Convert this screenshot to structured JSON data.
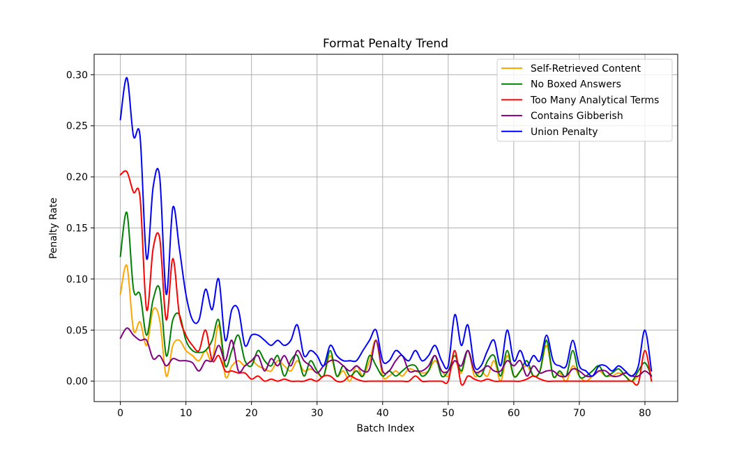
{
  "chart_data": {
    "type": "line",
    "title": "Format Penalty Trend",
    "xlabel": "Batch Index",
    "ylabel": "Penalty Rate",
    "xlim": [
      -4,
      85
    ],
    "ylim": [
      -0.02,
      0.32
    ],
    "xticks": [
      0,
      10,
      20,
      30,
      40,
      50,
      60,
      70,
      80
    ],
    "yticks": [
      0.0,
      0.05,
      0.1,
      0.15,
      0.2,
      0.25,
      0.3
    ],
    "ytick_labels": [
      "0.00",
      "0.05",
      "0.10",
      "0.15",
      "0.20",
      "0.25",
      "0.30"
    ],
    "grid": true,
    "legend_position": "top-right",
    "x": [
      0,
      1,
      2,
      3,
      4,
      5,
      6,
      7,
      8,
      9,
      10,
      11,
      12,
      13,
      14,
      15,
      16,
      17,
      18,
      19,
      20,
      21,
      22,
      23,
      24,
      25,
      26,
      27,
      28,
      29,
      30,
      31,
      32,
      33,
      34,
      35,
      36,
      37,
      38,
      39,
      40,
      41,
      42,
      43,
      44,
      45,
      46,
      47,
      48,
      49,
      50,
      51,
      52,
      53,
      54,
      55,
      56,
      57,
      58,
      59,
      60,
      61,
      62,
      63,
      64,
      65,
      66,
      67,
      68,
      69,
      70,
      71,
      72,
      73,
      74,
      75,
      76,
      77,
      78,
      79,
      80,
      81
    ],
    "series": [
      {
        "name": "Self-Retrieved Content",
        "color": "#ffa500",
        "values": [
          0.085,
          0.113,
          0.05,
          0.058,
          0.035,
          0.07,
          0.06,
          0.005,
          0.035,
          0.04,
          0.03,
          0.025,
          0.02,
          0.03,
          0.02,
          0.055,
          0.005,
          0.015,
          0.02,
          0.015,
          0.02,
          0.015,
          0.012,
          0.01,
          0.02,
          0.015,
          0.01,
          0.02,
          0.01,
          0.012,
          0.008,
          0.005,
          0.025,
          0.005,
          0.01,
          0.0,
          0.015,
          0.005,
          0.02,
          0.04,
          0.005,
          0.005,
          0.01,
          0.005,
          0.012,
          0.01,
          0.008,
          0.01,
          0.02,
          0.01,
          0.005,
          0.02,
          0.008,
          0.03,
          0.005,
          0.01,
          0.005,
          0.02,
          0.0,
          0.025,
          0.005,
          0.01,
          0.015,
          0.005,
          0.01,
          0.035,
          0.005,
          0.008,
          0.0,
          0.015,
          0.005,
          0.0,
          0.005,
          0.01,
          0.005,
          0.005,
          0.008,
          0.005,
          0.0,
          0.005,
          0.01,
          0.005
        ]
      },
      {
        "name": "No Boxed Answers",
        "color": "#008000",
        "values": [
          0.122,
          0.165,
          0.09,
          0.085,
          0.045,
          0.08,
          0.09,
          0.025,
          0.06,
          0.065,
          0.04,
          0.03,
          0.028,
          0.03,
          0.04,
          0.06,
          0.015,
          0.03,
          0.045,
          0.02,
          0.015,
          0.03,
          0.02,
          0.015,
          0.025,
          0.005,
          0.02,
          0.025,
          0.005,
          0.02,
          0.01,
          0.005,
          0.03,
          0.005,
          0.015,
          0.005,
          0.01,
          0.005,
          0.025,
          0.015,
          0.005,
          0.01,
          0.005,
          0.01,
          0.015,
          0.015,
          0.005,
          0.01,
          0.025,
          0.005,
          0.01,
          0.025,
          0.01,
          0.03,
          0.01,
          0.005,
          0.02,
          0.025,
          0.005,
          0.03,
          0.005,
          0.01,
          0.02,
          0.005,
          0.01,
          0.04,
          0.005,
          0.01,
          0.005,
          0.03,
          0.005,
          0.005,
          0.01,
          0.015,
          0.005,
          0.008,
          0.012,
          0.005,
          0.0,
          0.01,
          0.018,
          0.005
        ]
      },
      {
        "name": "Too Many Analytical Terms",
        "color": "#ff0000",
        "values": [
          0.202,
          0.205,
          0.185,
          0.18,
          0.07,
          0.13,
          0.14,
          0.06,
          0.12,
          0.065,
          0.045,
          0.035,
          0.03,
          0.05,
          0.02,
          0.025,
          0.01,
          0.01,
          0.008,
          0.008,
          0.002,
          0.005,
          0.0,
          0.002,
          0.0,
          0.002,
          0.0,
          0.0,
          0.0,
          0.002,
          0.0,
          0.005,
          0.005,
          0.0,
          0.0,
          0.005,
          0.002,
          0.0,
          0.0,
          0.0,
          0.0,
          0.0,
          0.0,
          0.0,
          0.0,
          0.005,
          0.0,
          0.0,
          0.0,
          0.0,
          0.0,
          0.03,
          -0.003,
          0.005,
          0.002,
          0.0,
          0.002,
          0.0,
          0.0,
          0.0,
          0.0,
          0.0,
          0.002,
          0.005,
          0.002,
          0.0,
          0.0,
          0.0,
          0.0,
          0.0,
          0.0,
          0.0,
          0.0,
          0.0,
          0.0,
          0.0,
          0.0,
          0.0,
          0.0,
          -0.002,
          0.03,
          0.0
        ]
      },
      {
        "name": "Contains Gibberish",
        "color": "#800080",
        "values": [
          0.042,
          0.052,
          0.045,
          0.04,
          0.04,
          0.022,
          0.025,
          0.015,
          0.022,
          0.02,
          0.02,
          0.018,
          0.01,
          0.02,
          0.02,
          0.035,
          0.02,
          0.04,
          0.01,
          0.015,
          0.02,
          0.025,
          0.01,
          0.022,
          0.015,
          0.025,
          0.015,
          0.03,
          0.02,
          0.015,
          0.008,
          0.015,
          0.02,
          0.02,
          0.015,
          0.01,
          0.015,
          0.01,
          0.012,
          0.04,
          0.01,
          0.01,
          0.02,
          0.025,
          0.01,
          0.01,
          0.01,
          0.015,
          0.025,
          0.01,
          0.01,
          0.02,
          0.015,
          0.03,
          0.01,
          0.01,
          0.015,
          0.01,
          0.01,
          0.02,
          0.015,
          0.02,
          0.005,
          0.015,
          0.008,
          0.01,
          0.01,
          0.005,
          0.005,
          0.012,
          0.01,
          0.005,
          0.005,
          0.01,
          0.01,
          0.005,
          0.005,
          0.008,
          0.005,
          0.005,
          0.01,
          0.005
        ]
      },
      {
        "name": "Union Penalty",
        "color": "#0000ff",
        "values": [
          0.256,
          0.297,
          0.24,
          0.24,
          0.12,
          0.19,
          0.2,
          0.085,
          0.17,
          0.13,
          0.085,
          0.06,
          0.06,
          0.09,
          0.07,
          0.1,
          0.04,
          0.07,
          0.07,
          0.035,
          0.045,
          0.045,
          0.04,
          0.035,
          0.04,
          0.035,
          0.04,
          0.055,
          0.025,
          0.03,
          0.025,
          0.015,
          0.035,
          0.025,
          0.02,
          0.02,
          0.02,
          0.03,
          0.04,
          0.05,
          0.02,
          0.02,
          0.03,
          0.025,
          0.02,
          0.03,
          0.02,
          0.025,
          0.035,
          0.02,
          0.015,
          0.065,
          0.035,
          0.055,
          0.015,
          0.015,
          0.03,
          0.04,
          0.015,
          0.05,
          0.02,
          0.03,
          0.015,
          0.025,
          0.02,
          0.045,
          0.02,
          0.015,
          0.015,
          0.04,
          0.015,
          0.01,
          0.005,
          0.015,
          0.015,
          0.01,
          0.015,
          0.01,
          0.005,
          0.015,
          0.05,
          0.01
        ]
      }
    ]
  }
}
